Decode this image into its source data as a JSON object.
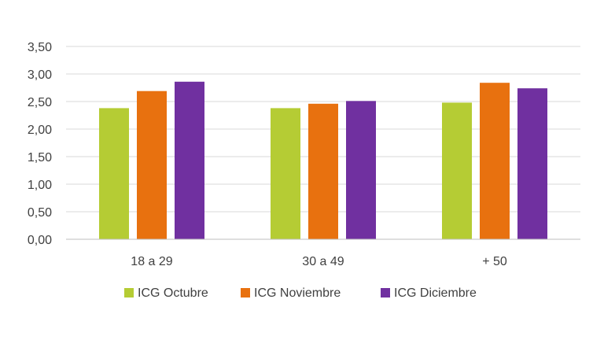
{
  "chart_data": {
    "type": "bar",
    "categories": [
      "18 a 29",
      "30 a 49",
      "+ 50"
    ],
    "series": [
      {
        "name": "ICG Octubre",
        "values": [
          2.38,
          2.38,
          2.48
        ],
        "color": "#b5cc34"
      },
      {
        "name": "ICG Noviembre",
        "values": [
          2.69,
          2.46,
          2.84
        ],
        "color": "#e8710f"
      },
      {
        "name": "ICG Diciembre",
        "values": [
          2.86,
          2.51,
          2.74
        ],
        "color": "#7030a0"
      }
    ],
    "ylim": [
      0,
      3.5
    ],
    "yticks": [
      0,
      0.5,
      1.0,
      1.5,
      2.0,
      2.5,
      3.0,
      3.5
    ],
    "ytick_labels": [
      "0,00",
      "0,50",
      "1,00",
      "1,50",
      "2,00",
      "2,50",
      "3,00",
      "3,50"
    ],
    "grid": true,
    "legend_position": "bottom",
    "gridline_color": "#d9d9d9",
    "axis_color": "#bfbfbf"
  }
}
